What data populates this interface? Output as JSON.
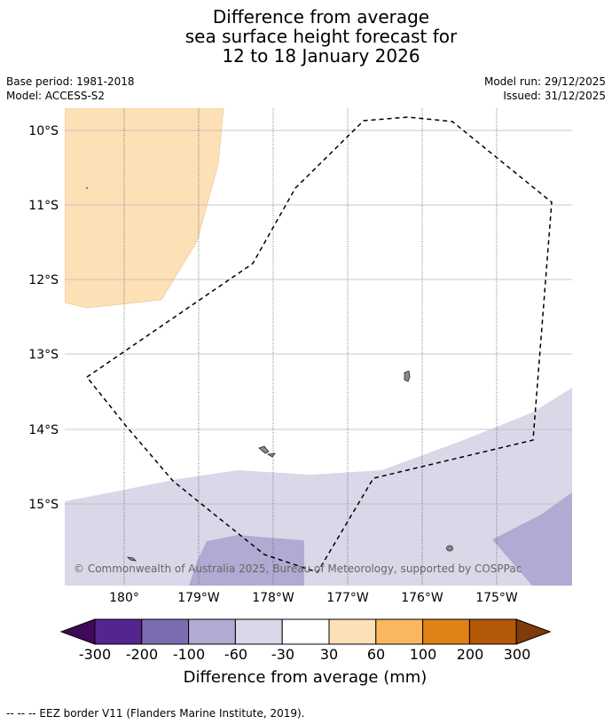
{
  "title": {
    "line1": "Difference from average",
    "line2": "sea surface height forecast for",
    "line3": "12 to 18 January 2026"
  },
  "meta": {
    "base_period": "Base period: 1981-2018",
    "model": "Model: ACCESS-S2",
    "model_run": "Model run: 29/12/2025",
    "issued": "Issued: 31/12/2025"
  },
  "map": {
    "lat_labels": [
      "10°S",
      "11°S",
      "12°S",
      "13°S",
      "14°S",
      "15°S"
    ],
    "lon_labels": [
      "180°",
      "179°W",
      "178°W",
      "177°W",
      "176°W",
      "175°W"
    ],
    "copyright": "© Commonwealth of Australia 2025, Bureau of Meteorology, supported by COSPPac",
    "colors": {
      "orange_30_60": "#fde0b6",
      "purple_60_30": "#d8d8e9",
      "purple_100_60": "#b2aad2",
      "land": "#8a8a8a"
    }
  },
  "colorbar": {
    "title": "Difference from average (mm)",
    "tick_labels": [
      "-300",
      "-200",
      "-100",
      "-60",
      "-30",
      "30",
      "60",
      "100",
      "200",
      "300"
    ],
    "colors": [
      "#3f0a5a",
      "#54258f",
      "#7d6db0",
      "#b2aad2",
      "#d8d8e9",
      "#ffffff",
      "#fde0b6",
      "#fbb75f",
      "#e08215",
      "#b35806",
      "#7f3b08"
    ]
  },
  "footer": "--  --  -- EEZ border V11 (Flanders Marine Institute, 2019)."
}
